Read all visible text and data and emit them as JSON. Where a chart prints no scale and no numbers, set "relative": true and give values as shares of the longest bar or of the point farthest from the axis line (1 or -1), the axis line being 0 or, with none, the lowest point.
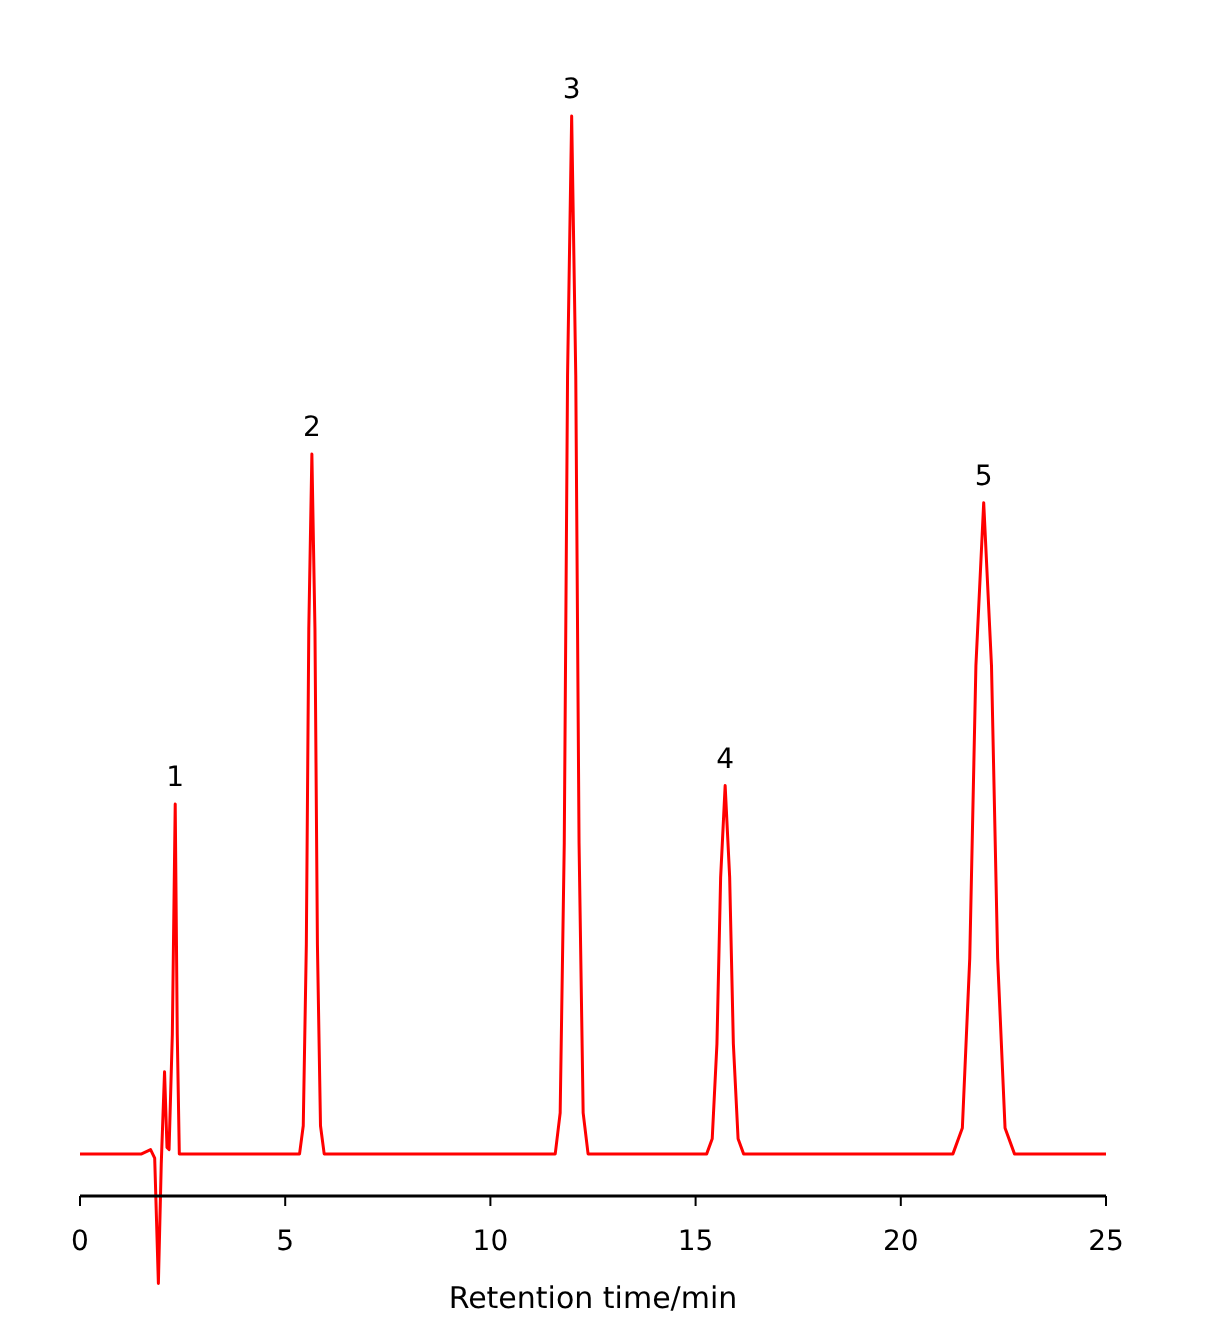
{
  "chart_data": {
    "type": "line",
    "relative": true,
    "xlabel": "Retention time/min",
    "xlim": [
      0,
      25
    ],
    "xticks": [
      0,
      5,
      10,
      15,
      20,
      25
    ],
    "series": [
      {
        "color": "#ff0000",
        "x": [
          0,
          1.5,
          1.72,
          1.82,
          1.91,
          1.98,
          2.06,
          2.12,
          2.17,
          2.25,
          2.32,
          2.37,
          2.42,
          5.35,
          5.44,
          5.515,
          5.575,
          5.65,
          5.725,
          5.785,
          5.86,
          5.95,
          11.58,
          11.7,
          11.8,
          11.88,
          11.98,
          12.08,
          12.16,
          12.26,
          12.38,
          15.27,
          15.405,
          15.52,
          15.61,
          15.72,
          15.83,
          15.92,
          16.035,
          16.17,
          21.27,
          21.5,
          21.68,
          21.83,
          22.02,
          22.21,
          22.36,
          22.54,
          22.77,
          25
        ],
        "values": [
          0.039,
          0.039,
          0.043,
          0.035,
          -0.081,
          0.03,
          0.115,
          0.045,
          0.043,
          0.15,
          0.363,
          0.15,
          0.039,
          0.039,
          0.065,
          0.233,
          0.525,
          0.687,
          0.525,
          0.233,
          0.065,
          0.039,
          0.039,
          0.077,
          0.327,
          0.76,
          1,
          0.76,
          0.327,
          0.077,
          0.039,
          0.039,
          0.053,
          0.141,
          0.295,
          0.38,
          0.295,
          0.141,
          0.053,
          0.039,
          0.039,
          0.063,
          0.22,
          0.491,
          0.642,
          0.491,
          0.22,
          0.063,
          0.039,
          0.039
        ]
      }
    ],
    "annotations": [
      {
        "text": "1",
        "x": 2.32,
        "y": 0.363
      },
      {
        "text": "2",
        "x": 5.65,
        "y": 0.687
      },
      {
        "text": "3",
        "x": 11.98,
        "y": 1
      },
      {
        "text": "4",
        "x": 15.72,
        "y": 0.38
      },
      {
        "text": "5",
        "x": 22.02,
        "y": 0.642
      }
    ]
  }
}
